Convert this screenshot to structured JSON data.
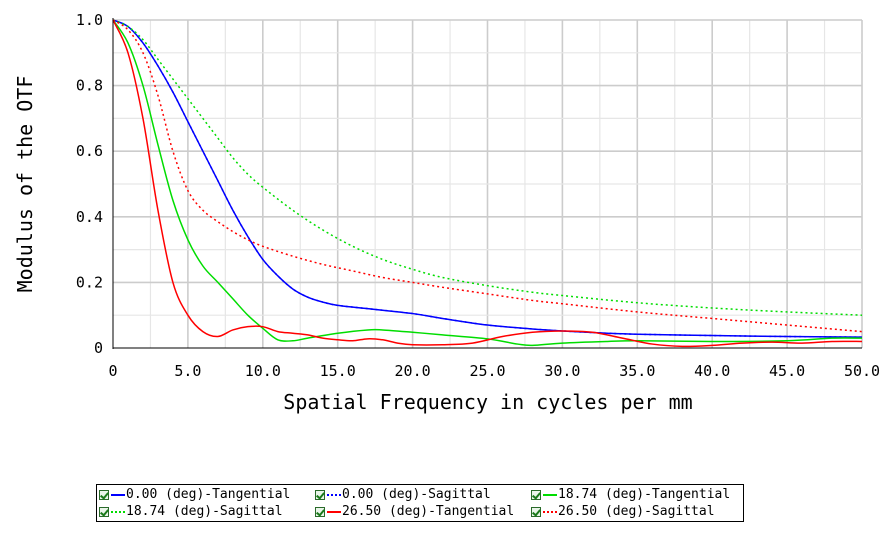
{
  "chart_data": {
    "type": "line",
    "xlabel": "Spatial Frequency in cycles per mm",
    "ylabel": "Modulus of the OTF",
    "xlim": [
      0,
      50
    ],
    "ylim": [
      0,
      1.0
    ],
    "x_ticks": [
      "0",
      "5.0",
      "10.0",
      "15.0",
      "20.0",
      "25.0",
      "30.0",
      "35.0",
      "40.0",
      "45.0",
      "50.0"
    ],
    "y_ticks": [
      "0",
      "0.2",
      "0.4",
      "0.6",
      "0.8",
      "1.0"
    ],
    "grid": true,
    "legend_position": "bottom",
    "series": [
      {
        "name": "0.00 (deg)-Tangential",
        "color": "#0000ff",
        "dash": "solid",
        "points": [
          [
            0,
            1.0
          ],
          [
            1,
            0.98
          ],
          [
            2,
            0.93
          ],
          [
            3,
            0.86
          ],
          [
            4,
            0.78
          ],
          [
            5,
            0.69
          ],
          [
            6,
            0.6
          ],
          [
            7,
            0.51
          ],
          [
            8,
            0.42
          ],
          [
            9,
            0.34
          ],
          [
            10,
            0.27
          ],
          [
            11,
            0.22
          ],
          [
            12,
            0.18
          ],
          [
            13,
            0.155
          ],
          [
            14,
            0.14
          ],
          [
            15,
            0.13
          ],
          [
            17,
            0.12
          ],
          [
            20,
            0.105
          ],
          [
            22,
            0.09
          ],
          [
            25,
            0.07
          ],
          [
            28,
            0.058
          ],
          [
            30,
            0.052
          ],
          [
            33,
            0.045
          ],
          [
            35,
            0.042
          ],
          [
            40,
            0.038
          ],
          [
            45,
            0.035
          ],
          [
            50,
            0.033
          ]
        ]
      },
      {
        "name": "0.00 (deg)-Sagittal",
        "color": "#0000ff",
        "dash": "dotted",
        "points": [
          [
            0,
            1.0
          ],
          [
            1,
            0.98
          ],
          [
            2,
            0.93
          ],
          [
            3,
            0.86
          ],
          [
            4,
            0.78
          ],
          [
            5,
            0.69
          ],
          [
            6,
            0.6
          ],
          [
            7,
            0.51
          ],
          [
            8,
            0.42
          ],
          [
            9,
            0.34
          ],
          [
            10,
            0.27
          ],
          [
            11,
            0.22
          ],
          [
            12,
            0.18
          ],
          [
            13,
            0.155
          ],
          [
            14,
            0.14
          ],
          [
            15,
            0.13
          ],
          [
            17,
            0.12
          ],
          [
            20,
            0.105
          ],
          [
            22,
            0.09
          ],
          [
            25,
            0.07
          ],
          [
            28,
            0.058
          ],
          [
            30,
            0.052
          ],
          [
            33,
            0.045
          ],
          [
            35,
            0.042
          ],
          [
            40,
            0.038
          ],
          [
            45,
            0.035
          ],
          [
            50,
            0.033
          ]
        ]
      },
      {
        "name": "18.74 (deg)-Tangential",
        "color": "#00dd00",
        "dash": "solid",
        "points": [
          [
            0,
            1.0
          ],
          [
            1,
            0.93
          ],
          [
            2,
            0.8
          ],
          [
            3,
            0.62
          ],
          [
            4,
            0.45
          ],
          [
            5,
            0.33
          ],
          [
            6,
            0.25
          ],
          [
            7,
            0.2
          ],
          [
            8,
            0.15
          ],
          [
            9,
            0.1
          ],
          [
            10,
            0.06
          ],
          [
            11,
            0.025
          ],
          [
            12,
            0.022
          ],
          [
            13,
            0.03
          ],
          [
            15,
            0.045
          ],
          [
            17,
            0.055
          ],
          [
            18,
            0.055
          ],
          [
            20,
            0.048
          ],
          [
            22,
            0.04
          ],
          [
            25,
            0.028
          ],
          [
            27,
            0.012
          ],
          [
            28,
            0.008
          ],
          [
            30,
            0.015
          ],
          [
            33,
            0.02
          ],
          [
            35,
            0.022
          ],
          [
            40,
            0.02
          ],
          [
            45,
            0.022
          ],
          [
            48,
            0.03
          ],
          [
            50,
            0.03
          ]
        ]
      },
      {
        "name": "18.74 (deg)-Sagittal",
        "color": "#00dd00",
        "dash": "dotted",
        "points": [
          [
            0,
            1.0
          ],
          [
            1,
            0.98
          ],
          [
            2,
            0.94
          ],
          [
            3,
            0.88
          ],
          [
            4,
            0.82
          ],
          [
            5,
            0.76
          ],
          [
            6,
            0.7
          ],
          [
            7,
            0.64
          ],
          [
            8,
            0.58
          ],
          [
            9,
            0.53
          ],
          [
            10,
            0.49
          ],
          [
            12,
            0.42
          ],
          [
            14,
            0.36
          ],
          [
            16,
            0.31
          ],
          [
            18,
            0.27
          ],
          [
            20,
            0.24
          ],
          [
            22,
            0.215
          ],
          [
            25,
            0.19
          ],
          [
            28,
            0.17
          ],
          [
            30,
            0.16
          ],
          [
            35,
            0.138
          ],
          [
            40,
            0.122
          ],
          [
            45,
            0.11
          ],
          [
            50,
            0.1
          ]
        ]
      },
      {
        "name": "26.50 (deg)-Tangential",
        "color": "#ff0000",
        "dash": "solid",
        "points": [
          [
            0,
            1.0
          ],
          [
            1,
            0.9
          ],
          [
            2,
            0.7
          ],
          [
            3,
            0.42
          ],
          [
            4,
            0.2
          ],
          [
            5,
            0.1
          ],
          [
            6,
            0.05
          ],
          [
            7,
            0.035
          ],
          [
            8,
            0.055
          ],
          [
            9,
            0.065
          ],
          [
            10,
            0.065
          ],
          [
            11,
            0.05
          ],
          [
            12,
            0.045
          ],
          [
            13,
            0.04
          ],
          [
            14,
            0.03
          ],
          [
            15,
            0.025
          ],
          [
            16,
            0.022
          ],
          [
            17,
            0.028
          ],
          [
            18,
            0.025
          ],
          [
            19,
            0.015
          ],
          [
            20,
            0.01
          ],
          [
            22,
            0.01
          ],
          [
            24,
            0.015
          ],
          [
            26,
            0.035
          ],
          [
            28,
            0.048
          ],
          [
            30,
            0.052
          ],
          [
            32,
            0.048
          ],
          [
            34,
            0.03
          ],
          [
            36,
            0.012
          ],
          [
            38,
            0.005
          ],
          [
            40,
            0.008
          ],
          [
            42,
            0.015
          ],
          [
            44,
            0.018
          ],
          [
            46,
            0.015
          ],
          [
            48,
            0.02
          ],
          [
            50,
            0.02
          ]
        ]
      },
      {
        "name": "26.50 (deg)-Sagittal",
        "color": "#ff0000",
        "dash": "dotted",
        "points": [
          [
            0,
            1.0
          ],
          [
            1,
            0.97
          ],
          [
            2,
            0.9
          ],
          [
            3,
            0.77
          ],
          [
            4,
            0.6
          ],
          [
            5,
            0.48
          ],
          [
            6,
            0.42
          ],
          [
            7,
            0.385
          ],
          [
            8,
            0.355
          ],
          [
            9,
            0.33
          ],
          [
            10,
            0.31
          ],
          [
            12,
            0.28
          ],
          [
            14,
            0.255
          ],
          [
            16,
            0.235
          ],
          [
            18,
            0.215
          ],
          [
            20,
            0.2
          ],
          [
            22,
            0.185
          ],
          [
            25,
            0.165
          ],
          [
            28,
            0.145
          ],
          [
            30,
            0.135
          ],
          [
            35,
            0.11
          ],
          [
            40,
            0.09
          ],
          [
            45,
            0.07
          ],
          [
            50,
            0.05
          ]
        ]
      }
    ]
  },
  "legend": {
    "items": [
      {
        "label": "0.00 (deg)-Tangential",
        "color": "#0000ff",
        "style": "solid"
      },
      {
        "label": "0.00 (deg)-Sagittal",
        "color": "#0000ff",
        "style": "dotted"
      },
      {
        "label": "18.74 (deg)-Tangential",
        "color": "#00dd00",
        "style": "solid"
      },
      {
        "label": "18.74 (deg)-Sagittal",
        "color": "#00dd00",
        "style": "dotted"
      },
      {
        "label": "26.50 (deg)-Tangential",
        "color": "#ff0000",
        "style": "solid"
      },
      {
        "label": "26.50 (deg)-Sagittal",
        "color": "#ff0000",
        "style": "dotted"
      }
    ]
  }
}
